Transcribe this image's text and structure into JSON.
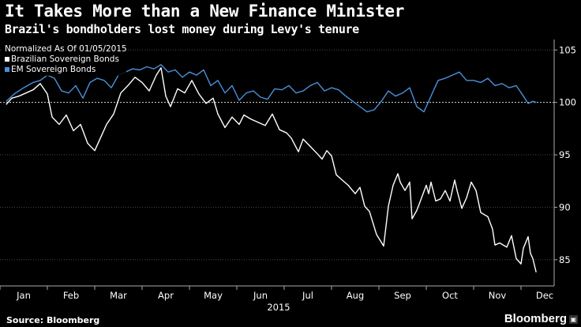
{
  "chart_data": {
    "type": "line",
    "title": "It Takes More than a New Finance Minister",
    "subtitle": "Brazil's bondholders lost money during Levy's tenure",
    "normalization_note": "Normalized As Of 01/05/2015",
    "xlabel": "2015",
    "ylabel": "",
    "ylim": [
      82.5,
      106
    ],
    "yticks": [
      85,
      90,
      95,
      100,
      105
    ],
    "reference_line": 100,
    "x_ticks": [
      "Jan",
      "Feb",
      "Mar",
      "Apr",
      "May",
      "Jun",
      "Jul",
      "Aug",
      "Sep",
      "Oct",
      "Nov",
      "Dec"
    ],
    "x_units": "months since 1 Jan 2015",
    "series": [
      {
        "name": "Brazilian Sovereign Bonds",
        "color": "#ffffff",
        "x": [
          0.13,
          0.25,
          0.4,
          0.55,
          0.7,
          0.85,
          1.0,
          1.1,
          1.25,
          1.4,
          1.55,
          1.7,
          1.85,
          2.0,
          2.15,
          2.25,
          2.4,
          2.55,
          2.7,
          2.85,
          3.0,
          3.15,
          3.3,
          3.4,
          3.5,
          3.6,
          3.75,
          3.9,
          4.05,
          4.2,
          4.35,
          4.5,
          4.6,
          4.75,
          4.9,
          5.05,
          5.15,
          5.3,
          5.45,
          5.6,
          5.75,
          5.9,
          6.05,
          6.15,
          6.3,
          6.4,
          6.55,
          6.7,
          6.8,
          6.9,
          7.0,
          7.1,
          7.2,
          7.35,
          7.5,
          7.6,
          7.7,
          7.8,
          7.95,
          8.1,
          8.2,
          8.3,
          8.4,
          8.45,
          8.55,
          8.65,
          8.7,
          8.8,
          8.9,
          9.0,
          9.05,
          9.1,
          9.2,
          9.3,
          9.4,
          9.5,
          9.6,
          9.65,
          9.75,
          9.85,
          9.95,
          10.05,
          10.15,
          10.3,
          10.4,
          10.45,
          10.55,
          10.7,
          10.8,
          10.9,
          11.0,
          11.05,
          11.15,
          11.2,
          11.25,
          11.32
        ],
        "values": [
          99.8,
          100.4,
          100.6,
          100.9,
          101.2,
          101.8,
          100.8,
          98.6,
          97.9,
          98.8,
          97.3,
          97.9,
          96.1,
          95.4,
          96.9,
          97.9,
          98.9,
          100.9,
          101.6,
          102.4,
          101.9,
          101.1,
          102.6,
          103.3,
          100.6,
          99.6,
          101.3,
          100.9,
          102.1,
          100.8,
          99.9,
          100.4,
          98.9,
          97.6,
          98.6,
          97.9,
          98.8,
          98.4,
          98.1,
          97.8,
          98.9,
          97.4,
          97.1,
          96.6,
          95.3,
          96.5,
          95.8,
          95.1,
          94.6,
          95.4,
          94.9,
          93.1,
          92.7,
          92.1,
          91.3,
          91.9,
          90.1,
          89.6,
          87.4,
          86.3,
          90.1,
          92.1,
          93.2,
          92.4,
          91.6,
          92.4,
          88.9,
          89.7,
          90.9,
          92.1,
          91.3,
          92.4,
          90.6,
          90.8,
          91.6,
          90.6,
          92.6,
          91.6,
          89.9,
          90.9,
          92.4,
          91.6,
          89.5,
          89.1,
          87.9,
          86.4,
          86.6,
          86.2,
          87.3,
          85.1,
          84.6,
          86.1,
          87.2,
          85.6,
          85.1,
          83.8
        ]
      },
      {
        "name": "EM Sovereign Bonds",
        "color": "#4a90d9",
        "x": [
          0.13,
          0.3,
          0.5,
          0.7,
          0.85,
          1.0,
          1.15,
          1.3,
          1.45,
          1.6,
          1.75,
          1.9,
          2.05,
          2.2,
          2.35,
          2.5,
          2.65,
          2.8,
          2.95,
          3.1,
          3.25,
          3.4,
          3.55,
          3.7,
          3.85,
          4.0,
          4.15,
          4.3,
          4.45,
          4.6,
          4.75,
          4.9,
          5.05,
          5.2,
          5.35,
          5.5,
          5.65,
          5.8,
          5.95,
          6.1,
          6.25,
          6.4,
          6.55,
          6.7,
          6.85,
          7.0,
          7.15,
          7.3,
          7.45,
          7.6,
          7.75,
          7.9,
          8.05,
          8.2,
          8.35,
          8.5,
          8.65,
          8.8,
          8.95,
          9.1,
          9.25,
          9.4,
          9.55,
          9.7,
          9.85,
          10.0,
          10.15,
          10.3,
          10.45,
          10.6,
          10.75,
          10.9,
          11.05,
          11.15,
          11.25,
          11.32
        ],
        "values": [
          100.1,
          100.8,
          101.4,
          101.9,
          102.1,
          102.6,
          102.3,
          101.1,
          100.9,
          101.6,
          100.4,
          101.9,
          102.3,
          102.1,
          101.4,
          102.6,
          102.9,
          103.2,
          103.1,
          103.4,
          103.2,
          103.6,
          102.9,
          103.1,
          102.4,
          102.9,
          102.6,
          103.1,
          101.6,
          102.1,
          100.9,
          101.6,
          100.2,
          100.9,
          101.1,
          100.5,
          100.3,
          101.3,
          101.2,
          101.6,
          100.9,
          101.1,
          101.6,
          101.9,
          101.1,
          101.4,
          101.2,
          100.6,
          100.1,
          99.6,
          99.1,
          99.3,
          100.1,
          101.1,
          100.6,
          100.9,
          101.4,
          99.6,
          99.1,
          100.6,
          102.1,
          102.3,
          102.6,
          102.9,
          102.1,
          102.1,
          101.9,
          102.3,
          101.6,
          101.8,
          101.4,
          101.6,
          100.6,
          99.9,
          100.1,
          100.0
        ]
      }
    ]
  },
  "footer": {
    "source": "Source: Bloomberg",
    "brand": "Bloomberg",
    "brand_icon": "bloomberg-terminal-icon"
  }
}
